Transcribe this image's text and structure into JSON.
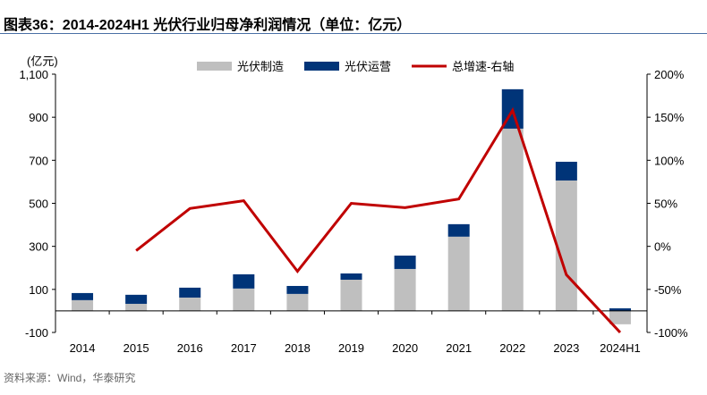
{
  "title": "图表36：2014-2024H1 光伏行业归母净利润情况（单位：亿元）",
  "source": "资料来源：Wind，华泰研究",
  "chart_data": {
    "type": "bar+line",
    "title": "图表36：2014-2024H1 光伏行业归母净利润情况（单位：亿元）",
    "y_unit_label": "(亿元)",
    "categories": [
      "2014",
      "2015",
      "2016",
      "2017",
      "2018",
      "2019",
      "2020",
      "2021",
      "2022",
      "2023",
      "2024H1"
    ],
    "series": [
      {
        "name": "光伏制造",
        "type": "bar",
        "stack": true,
        "axis": "left",
        "color": "#bfbfbf",
        "values": [
          50,
          33,
          62,
          104,
          79,
          145,
          195,
          345,
          847,
          606,
          -62
        ]
      },
      {
        "name": "光伏运营",
        "type": "bar",
        "stack": true,
        "axis": "left",
        "color": "#003478",
        "values": [
          33,
          42,
          46,
          66,
          37,
          29,
          62,
          58,
          183,
          87,
          12
        ]
      },
      {
        "name": "总增速-右轴",
        "type": "line",
        "axis": "right",
        "color": "#c00000",
        "values": [
          null,
          -5,
          44,
          53,
          -29,
          50,
          45,
          55,
          158,
          -33,
          -104
        ]
      }
    ],
    "left_axis": {
      "ylim": [
        -100,
        1100
      ],
      "ticks": [
        -100,
        100,
        300,
        500,
        700,
        900,
        1100
      ],
      "tick_labels": [
        "-100",
        "100",
        "300",
        "500",
        "700",
        "900",
        "1,100"
      ]
    },
    "right_axis": {
      "ylim": [
        -100,
        200
      ],
      "ticks": [
        -100,
        -50,
        0,
        50,
        100,
        150,
        200
      ],
      "tick_labels": [
        "-100%",
        "-50%",
        "0%",
        "50%",
        "100%",
        "150%",
        "200%"
      ]
    },
    "legend": "top",
    "grid": false
  }
}
